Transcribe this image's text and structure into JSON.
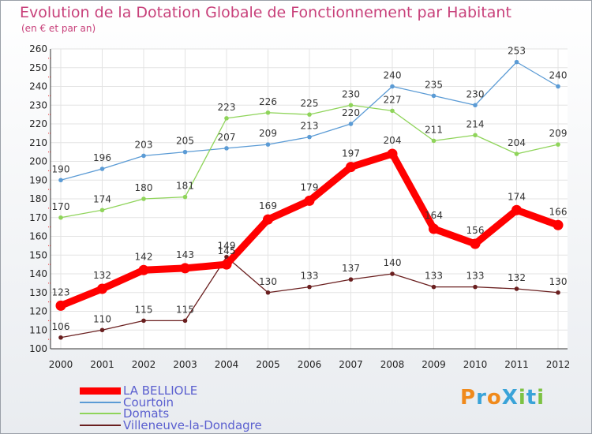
{
  "title": "Evolution de la Dotation Globale de Fonctionnement par Habitant",
  "subtitle": "(en € et par an)",
  "logo": {
    "text": "ProXiti",
    "letters": [
      "P",
      "r",
      "o",
      "X",
      "i",
      "t",
      "i"
    ],
    "colors": [
      "#f08a1c",
      "#3aa3d8",
      "#f08a1c",
      "#3aa3d8",
      "#7cc243",
      "#3aa3d8",
      "#7cc243"
    ]
  },
  "chart_data": {
    "type": "line",
    "title": "Evolution de la Dotation Globale de Fonctionnement par Habitant",
    "ylabel": "(en € et par an)",
    "xlabel": "",
    "categories": [
      "2000",
      "2001",
      "2002",
      "2003",
      "2004",
      "2005",
      "2006",
      "2007",
      "2008",
      "2009",
      "2010",
      "2011",
      "2012"
    ],
    "ylim": [
      100,
      260
    ],
    "yticks": [
      100,
      110,
      120,
      130,
      140,
      150,
      160,
      170,
      180,
      190,
      200,
      210,
      220,
      230,
      240,
      250,
      260
    ],
    "grid": true,
    "legend_position": "bottom-left",
    "series": [
      {
        "name": "Courtoin",
        "color": "#5b9bd5",
        "values": [
          190,
          196,
          203,
          205,
          207,
          209,
          213,
          220,
          240,
          235,
          230,
          253,
          240
        ]
      },
      {
        "name": "Domats",
        "color": "#8fd45a",
        "values": [
          170,
          174,
          180,
          181,
          223,
          226,
          225,
          230,
          227,
          211,
          214,
          204,
          209
        ]
      },
      {
        "name": "Villeneuve-la-Dondagre",
        "color": "#6a1f1f",
        "values": [
          106,
          110,
          115,
          115,
          149,
          130,
          133,
          137,
          140,
          133,
          133,
          132,
          130
        ]
      },
      {
        "name": "LA BELLIOLE",
        "color": "#ff0000",
        "values": [
          123,
          132,
          142,
          143,
          145,
          169,
          179,
          197,
          204,
          164,
          156,
          174,
          166
        ]
      }
    ],
    "legend": [
      "LA BELLIOLE",
      "Courtoin",
      "Domats",
      "Villeneuve-la-Dondagre"
    ]
  }
}
